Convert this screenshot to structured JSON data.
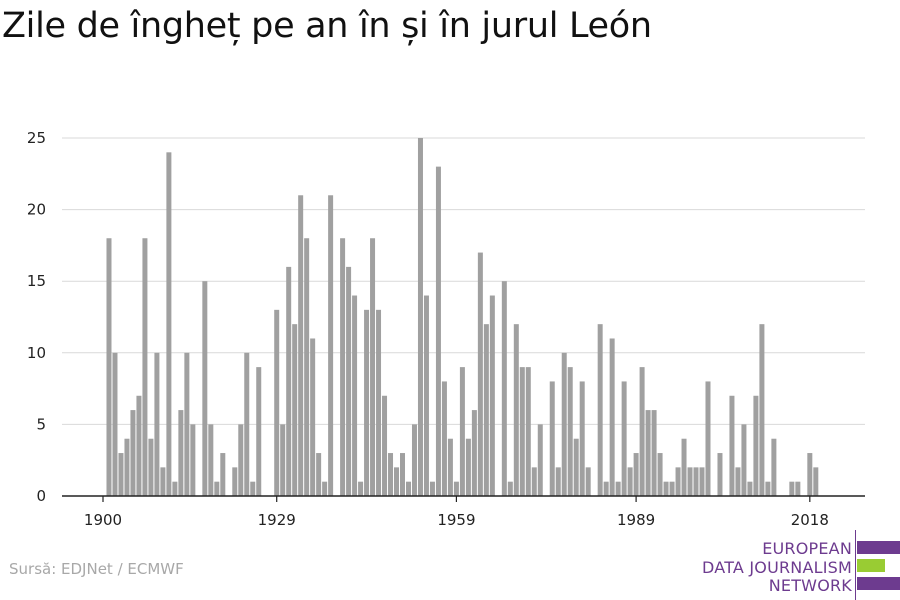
{
  "header": {
    "title": "Zile de îngheț pe an în și în jurul León"
  },
  "footer": {
    "source": "Sursă: EDJNet / ECMWF"
  },
  "logo": {
    "line1": "EUROPEAN",
    "line2": "DATA JOURNALISM",
    "line3": "NETWORK",
    "colors": {
      "purple": "#6d3b8f",
      "green": "#99cc33"
    }
  },
  "chart_data": {
    "type": "bar",
    "title": "Zile de îngheț pe an în și în jurul León",
    "xlabel": "",
    "ylabel": "",
    "x_ticks": [
      "1900",
      "1929",
      "1959",
      "1989",
      "2018"
    ],
    "y_ticks": [
      0,
      5,
      10,
      15,
      20,
      25
    ],
    "ylim": [
      0,
      25
    ],
    "grid": "horizontal",
    "bar_color": "#a0a0a0",
    "x": [
      1900,
      1901,
      1902,
      1903,
      1904,
      1905,
      1906,
      1907,
      1908,
      1909,
      1910,
      1911,
      1912,
      1913,
      1914,
      1915,
      1916,
      1917,
      1918,
      1919,
      1920,
      1921,
      1922,
      1923,
      1924,
      1925,
      1926,
      1927,
      1928,
      1929,
      1930,
      1931,
      1932,
      1933,
      1934,
      1935,
      1936,
      1937,
      1938,
      1939,
      1940,
      1941,
      1942,
      1943,
      1944,
      1945,
      1946,
      1947,
      1948,
      1949,
      1950,
      1951,
      1952,
      1953,
      1954,
      1955,
      1956,
      1957,
      1958,
      1959,
      1960,
      1961,
      1962,
      1963,
      1964,
      1965,
      1966,
      1967,
      1968,
      1969,
      1970,
      1971,
      1972,
      1973,
      1974,
      1975,
      1976,
      1977,
      1978,
      1979,
      1980,
      1981,
      1982,
      1983,
      1984,
      1985,
      1986,
      1987,
      1988,
      1989,
      1990,
      1991,
      1992,
      1993,
      1994,
      1995,
      1996,
      1997,
      1998,
      1999,
      2000,
      2001,
      2002,
      2003,
      2004,
      2005,
      2006,
      2007,
      2008,
      2009,
      2010,
      2011,
      2012,
      2013,
      2014,
      2015,
      2016,
      2017,
      2018,
      2019,
      2020
    ],
    "values": [
      0,
      18,
      10,
      3,
      4,
      6,
      7,
      18,
      4,
      10,
      2,
      24,
      1,
      6,
      10,
      5,
      0,
      15,
      5,
      1,
      3,
      0,
      2,
      5,
      10,
      1,
      9,
      0,
      0,
      13,
      5,
      16,
      12,
      21,
      18,
      11,
      3,
      1,
      21,
      0,
      18,
      16,
      14,
      1,
      13,
      18,
      13,
      7,
      3,
      2,
      3,
      1,
      5,
      25,
      14,
      1,
      23,
      8,
      4,
      1,
      9,
      4,
      6,
      17,
      12,
      14,
      0,
      15,
      1,
      12,
      9,
      9,
      2,
      5,
      0,
      8,
      2,
      10,
      9,
      4,
      8,
      2,
      0,
      12,
      1,
      11,
      1,
      8,
      2,
      3,
      9,
      6,
      6,
      3,
      1,
      1,
      2,
      4,
      2,
      2,
      2,
      8,
      0,
      3,
      0,
      7,
      2,
      5,
      1,
      7,
      12,
      1,
      4,
      0,
      0,
      1,
      1,
      0,
      3,
      2,
      0
    ]
  }
}
